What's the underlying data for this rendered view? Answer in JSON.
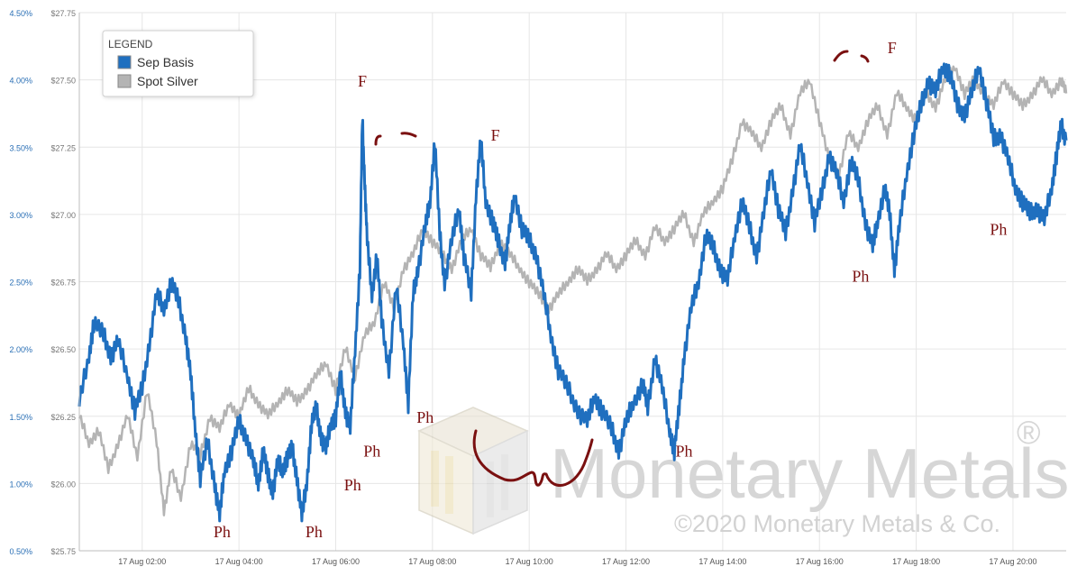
{
  "colors": {
    "sep_basis": "#1f6fbf",
    "spot_silver": "#b4b4b4",
    "left_axis_text": "#2a6fb5",
    "right_axis_text": "#777777",
    "annotation": "#7a1010",
    "grid": "#e6e6e6",
    "watermark": "#d2d2d2"
  },
  "legend": {
    "title": "LEGEND",
    "items": [
      {
        "label": "Sep Basis",
        "color": "#1f6fbf"
      },
      {
        "label": "Spot Silver",
        "color": "#b4b4b4"
      }
    ]
  },
  "watermark": {
    "name": "Monetary Metals",
    "registered": "®",
    "copyright": "©2020 Monetary Metals & Co."
  },
  "chart_data": {
    "type": "line",
    "x_unit": "hours after 17 Aug 00:00",
    "xlim": [
      0.7,
      21.1
    ],
    "x_ticks": [
      {
        "x": 2,
        "label": "17 Aug 02:00"
      },
      {
        "x": 4,
        "label": "17 Aug 04:00"
      },
      {
        "x": 6,
        "label": "17 Aug 06:00"
      },
      {
        "x": 8,
        "label": "17 Aug 08:00"
      },
      {
        "x": 10,
        "label": "17 Aug 10:00"
      },
      {
        "x": 12,
        "label": "17 Aug 12:00"
      },
      {
        "x": 14,
        "label": "17 Aug 14:00"
      },
      {
        "x": 16,
        "label": "17 Aug 16:00"
      },
      {
        "x": 18,
        "label": "17 Aug 18:00"
      },
      {
        "x": 20,
        "label": "17 Aug 20:00"
      }
    ],
    "left_axis": {
      "ylim": [
        0.5,
        4.5
      ],
      "ticks": [
        "0.50%",
        "1.00%",
        "1.50%",
        "2.00%",
        "2.50%",
        "3.00%",
        "3.50%",
        "4.00%",
        "4.50%"
      ]
    },
    "right_axis": {
      "ylim": [
        25.75,
        27.75
      ],
      "ticks": [
        "$25.75",
        "$26.00",
        "$26.25",
        "$26.50",
        "$26.75",
        "$27.00",
        "$27.25",
        "$27.50",
        "$27.75"
      ]
    },
    "series": [
      {
        "name": "Sep Basis",
        "axis": "left",
        "points": [
          [
            0.7,
            1.6
          ],
          [
            0.9,
            1.95
          ],
          [
            1.0,
            2.2
          ],
          [
            1.2,
            2.1
          ],
          [
            1.35,
            1.95
          ],
          [
            1.5,
            2.05
          ],
          [
            1.7,
            1.8
          ],
          [
            1.85,
            1.55
          ],
          [
            2.0,
            1.7
          ],
          [
            2.15,
            2.05
          ],
          [
            2.3,
            2.4
          ],
          [
            2.45,
            2.3
          ],
          [
            2.6,
            2.5
          ],
          [
            2.75,
            2.35
          ],
          [
            2.9,
            2.1
          ],
          [
            3.0,
            1.8
          ],
          [
            3.1,
            1.4
          ],
          [
            3.2,
            1.05
          ],
          [
            3.35,
            1.3
          ],
          [
            3.5,
            1.0
          ],
          [
            3.6,
            0.75
          ],
          [
            3.7,
            1.1
          ],
          [
            3.85,
            1.25
          ],
          [
            4.0,
            1.45
          ],
          [
            4.15,
            1.35
          ],
          [
            4.3,
            1.15
          ],
          [
            4.4,
            1.0
          ],
          [
            4.5,
            1.25
          ],
          [
            4.6,
            1.05
          ],
          [
            4.7,
            0.95
          ],
          [
            4.8,
            1.15
          ],
          [
            4.9,
            1.1
          ],
          [
            5.0,
            1.2
          ],
          [
            5.1,
            1.25
          ],
          [
            5.2,
            1.05
          ],
          [
            5.3,
            0.75
          ],
          [
            5.4,
            1.0
          ],
          [
            5.5,
            1.45
          ],
          [
            5.6,
            1.55
          ],
          [
            5.7,
            1.35
          ],
          [
            5.8,
            1.25
          ],
          [
            5.9,
            1.45
          ],
          [
            6.0,
            1.5
          ],
          [
            6.1,
            1.8
          ],
          [
            6.2,
            1.55
          ],
          [
            6.3,
            1.4
          ],
          [
            6.4,
            2.0
          ],
          [
            6.5,
            2.6
          ],
          [
            6.55,
            3.7
          ],
          [
            6.6,
            3.25
          ],
          [
            6.65,
            2.8
          ],
          [
            6.75,
            2.4
          ],
          [
            6.85,
            2.7
          ],
          [
            6.95,
            2.2
          ],
          [
            7.1,
            1.85
          ],
          [
            7.25,
            2.45
          ],
          [
            7.4,
            2.05
          ],
          [
            7.5,
            1.6
          ],
          [
            7.6,
            2.4
          ],
          [
            7.7,
            2.6
          ],
          [
            7.85,
            2.9
          ],
          [
            7.95,
            3.1
          ],
          [
            8.05,
            3.55
          ],
          [
            8.15,
            2.85
          ],
          [
            8.25,
            2.5
          ],
          [
            8.4,
            2.8
          ],
          [
            8.55,
            3.05
          ],
          [
            8.65,
            2.7
          ],
          [
            8.8,
            2.4
          ],
          [
            8.9,
            3.15
          ],
          [
            9.0,
            3.55
          ],
          [
            9.1,
            3.1
          ],
          [
            9.25,
            2.95
          ],
          [
            9.35,
            2.8
          ],
          [
            9.5,
            2.65
          ],
          [
            9.6,
            2.9
          ],
          [
            9.7,
            3.15
          ],
          [
            9.85,
            2.9
          ],
          [
            10.0,
            2.8
          ],
          [
            10.15,
            2.7
          ],
          [
            10.3,
            2.4
          ],
          [
            10.45,
            2.1
          ],
          [
            10.6,
            1.85
          ],
          [
            10.8,
            1.7
          ],
          [
            11.0,
            1.55
          ],
          [
            11.2,
            1.45
          ],
          [
            11.35,
            1.65
          ],
          [
            11.5,
            1.55
          ],
          [
            11.7,
            1.4
          ],
          [
            11.85,
            1.25
          ],
          [
            12.0,
            1.45
          ],
          [
            12.15,
            1.6
          ],
          [
            12.35,
            1.75
          ],
          [
            12.45,
            1.55
          ],
          [
            12.6,
            1.95
          ],
          [
            12.75,
            1.7
          ],
          [
            12.9,
            1.4
          ],
          [
            13.0,
            1.25
          ],
          [
            13.1,
            1.55
          ],
          [
            13.2,
            1.95
          ],
          [
            13.35,
            2.3
          ],
          [
            13.5,
            2.5
          ],
          [
            13.65,
            2.85
          ],
          [
            13.8,
            2.75
          ],
          [
            13.95,
            2.6
          ],
          [
            14.1,
            2.5
          ],
          [
            14.25,
            2.85
          ],
          [
            14.4,
            3.1
          ],
          [
            14.55,
            2.9
          ],
          [
            14.7,
            2.7
          ],
          [
            14.85,
            3.0
          ],
          [
            15.0,
            3.35
          ],
          [
            15.15,
            3.05
          ],
          [
            15.3,
            2.85
          ],
          [
            15.45,
            3.2
          ],
          [
            15.6,
            3.5
          ],
          [
            15.75,
            3.25
          ],
          [
            15.9,
            2.95
          ],
          [
            16.05,
            3.15
          ],
          [
            16.2,
            3.45
          ],
          [
            16.35,
            3.3
          ],
          [
            16.5,
            3.1
          ],
          [
            16.65,
            3.4
          ],
          [
            16.8,
            3.25
          ],
          [
            16.95,
            2.95
          ],
          [
            17.1,
            2.75
          ],
          [
            17.2,
            2.95
          ],
          [
            17.35,
            3.2
          ],
          [
            17.45,
            3.0
          ],
          [
            17.55,
            2.6
          ],
          [
            17.65,
            2.9
          ],
          [
            17.8,
            3.3
          ],
          [
            17.95,
            3.6
          ],
          [
            18.1,
            3.8
          ],
          [
            18.25,
            4.0
          ],
          [
            18.4,
            3.9
          ],
          [
            18.55,
            4.1
          ],
          [
            18.7,
            4.05
          ],
          [
            18.85,
            3.8
          ],
          [
            19.0,
            3.75
          ],
          [
            19.15,
            3.9
          ],
          [
            19.3,
            4.1
          ],
          [
            19.45,
            3.85
          ],
          [
            19.6,
            3.55
          ],
          [
            19.75,
            3.6
          ],
          [
            19.9,
            3.4
          ],
          [
            20.05,
            3.2
          ],
          [
            20.2,
            3.1
          ],
          [
            20.35,
            3.0
          ],
          [
            20.5,
            3.05
          ],
          [
            20.65,
            2.95
          ],
          [
            20.8,
            3.2
          ],
          [
            20.9,
            3.45
          ],
          [
            21.0,
            3.65
          ],
          [
            21.1,
            3.55
          ]
        ]
      },
      {
        "name": "Spot Silver",
        "axis": "right",
        "points": [
          [
            0.7,
            26.25
          ],
          [
            0.9,
            26.15
          ],
          [
            1.1,
            26.2
          ],
          [
            1.3,
            26.05
          ],
          [
            1.5,
            26.15
          ],
          [
            1.7,
            26.25
          ],
          [
            1.9,
            26.1
          ],
          [
            2.1,
            26.35
          ],
          [
            2.3,
            26.15
          ],
          [
            2.45,
            25.9
          ],
          [
            2.6,
            26.05
          ],
          [
            2.8,
            25.95
          ],
          [
            3.0,
            26.15
          ],
          [
            3.2,
            26.1
          ],
          [
            3.4,
            26.25
          ],
          [
            3.6,
            26.2
          ],
          [
            3.8,
            26.3
          ],
          [
            4.0,
            26.25
          ],
          [
            4.2,
            26.35
          ],
          [
            4.4,
            26.3
          ],
          [
            4.6,
            26.25
          ],
          [
            4.8,
            26.3
          ],
          [
            5.0,
            26.35
          ],
          [
            5.2,
            26.3
          ],
          [
            5.4,
            26.35
          ],
          [
            5.6,
            26.4
          ],
          [
            5.8,
            26.45
          ],
          [
            6.0,
            26.35
          ],
          [
            6.2,
            26.5
          ],
          [
            6.4,
            26.4
          ],
          [
            6.6,
            26.55
          ],
          [
            6.8,
            26.6
          ],
          [
            7.0,
            26.75
          ],
          [
            7.2,
            26.65
          ],
          [
            7.4,
            26.8
          ],
          [
            7.6,
            26.85
          ],
          [
            7.8,
            26.95
          ],
          [
            8.0,
            26.9
          ],
          [
            8.2,
            26.85
          ],
          [
            8.4,
            26.8
          ],
          [
            8.6,
            26.9
          ],
          [
            8.8,
            26.95
          ],
          [
            9.0,
            26.85
          ],
          [
            9.2,
            26.8
          ],
          [
            9.4,
            26.9
          ],
          [
            9.6,
            26.85
          ],
          [
            9.8,
            26.8
          ],
          [
            10.0,
            26.75
          ],
          [
            10.2,
            26.7
          ],
          [
            10.4,
            26.65
          ],
          [
            10.6,
            26.7
          ],
          [
            10.8,
            26.75
          ],
          [
            11.0,
            26.8
          ],
          [
            11.2,
            26.75
          ],
          [
            11.4,
            26.8
          ],
          [
            11.6,
            26.85
          ],
          [
            11.8,
            26.8
          ],
          [
            12.0,
            26.85
          ],
          [
            12.2,
            26.9
          ],
          [
            12.4,
            26.85
          ],
          [
            12.6,
            26.95
          ],
          [
            12.8,
            26.9
          ],
          [
            13.0,
            26.95
          ],
          [
            13.2,
            27.0
          ],
          [
            13.4,
            26.9
          ],
          [
            13.6,
            27.0
          ],
          [
            13.8,
            27.05
          ],
          [
            14.0,
            27.1
          ],
          [
            14.2,
            27.2
          ],
          [
            14.4,
            27.35
          ],
          [
            14.6,
            27.3
          ],
          [
            14.8,
            27.25
          ],
          [
            15.0,
            27.35
          ],
          [
            15.2,
            27.4
          ],
          [
            15.4,
            27.3
          ],
          [
            15.6,
            27.45
          ],
          [
            15.8,
            27.5
          ],
          [
            16.0,
            27.35
          ],
          [
            16.2,
            27.2
          ],
          [
            16.4,
            27.15
          ],
          [
            16.6,
            27.3
          ],
          [
            16.8,
            27.25
          ],
          [
            17.0,
            27.35
          ],
          [
            17.2,
            27.4
          ],
          [
            17.4,
            27.3
          ],
          [
            17.6,
            27.45
          ],
          [
            17.8,
            27.4
          ],
          [
            18.0,
            27.35
          ],
          [
            18.2,
            27.45
          ],
          [
            18.4,
            27.4
          ],
          [
            18.6,
            27.5
          ],
          [
            18.8,
            27.55
          ],
          [
            19.0,
            27.45
          ],
          [
            19.2,
            27.5
          ],
          [
            19.4,
            27.45
          ],
          [
            19.6,
            27.4
          ],
          [
            19.8,
            27.5
          ],
          [
            20.0,
            27.45
          ],
          [
            20.2,
            27.4
          ],
          [
            20.4,
            27.45
          ],
          [
            20.6,
            27.5
          ],
          [
            20.8,
            27.45
          ],
          [
            21.0,
            27.5
          ],
          [
            21.1,
            27.45
          ]
        ]
      }
    ],
    "annotations": [
      {
        "text": "F",
        "x": 6.55,
        "y_left": 3.95
      },
      {
        "text": "F",
        "x": 9.3,
        "y_left": 3.55
      },
      {
        "text": "F",
        "x": 17.5,
        "y_left": 4.2
      },
      {
        "text": "Ph",
        "x": 3.65,
        "y_left": 0.6
      },
      {
        "text": "Ph",
        "x": 5.55,
        "y_left": 0.6
      },
      {
        "text": "Ph",
        "x": 6.35,
        "y_left": 0.95
      },
      {
        "text": "Ph",
        "x": 6.75,
        "y_left": 1.2
      },
      {
        "text": "Ph",
        "x": 7.85,
        "y_left": 1.45
      },
      {
        "text": "Ph",
        "x": 13.2,
        "y_left": 1.2
      },
      {
        "text": "Ph",
        "x": 16.85,
        "y_left": 2.5
      },
      {
        "text": "Ph",
        "x": 19.7,
        "y_left": 2.85
      }
    ]
  }
}
